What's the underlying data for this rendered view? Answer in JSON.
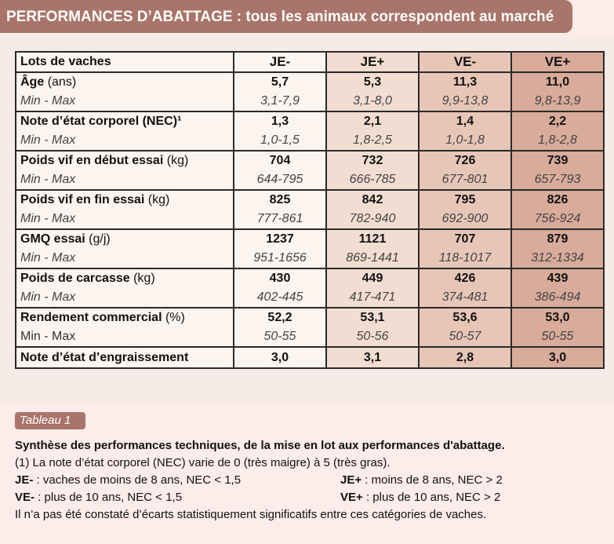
{
  "title": "PERFORMANCES D’ABATTAGE : tous les animaux correspondent au marché",
  "table": {
    "header": [
      "Lots de vaches",
      "JE-",
      "JE+",
      "VE-",
      "VE+"
    ],
    "rows": [
      {
        "label": "Âge",
        "unit": "(ans)",
        "values": [
          "5,7",
          "5,3",
          "11,3",
          "11,0"
        ],
        "mm_label": "Min - Max",
        "mm": [
          "3,1-7,9",
          "3,1-8,0",
          "9,9-13,8",
          "9,8-13,9"
        ]
      },
      {
        "label": "Note d’état corporel (NEC)¹",
        "unit": "",
        "values": [
          "1,3",
          "2,1",
          "1,4",
          "2,2"
        ],
        "mm_label": "Min - Max",
        "mm": [
          "1,0-1,5",
          "1,8-2,5",
          "1,0-1,8",
          "1,8-2,8"
        ]
      },
      {
        "label": "Poids vif en début essai",
        "unit": "(kg)",
        "values": [
          "704",
          "732",
          "726",
          "739"
        ],
        "mm_label": "Min - Max",
        "mm": [
          "644-795",
          "666-785",
          "677-801",
          "657-793"
        ]
      },
      {
        "label": "Poids vif en fin essai",
        "unit": "(kg)",
        "values": [
          "825",
          "842",
          "795",
          "826"
        ],
        "mm_label": "Min - Max",
        "mm": [
          "777-861",
          "782-940",
          "692-900",
          "756-924"
        ]
      },
      {
        "label": "GMQ essai",
        "unit": "(g/j)",
        "values": [
          "1237",
          "1121",
          "707",
          "879"
        ],
        "mm_label": "Min - Max",
        "mm": [
          "951-1656",
          "869-1441",
          "118-1017",
          "312-1334"
        ]
      },
      {
        "label": "Poids de carcasse",
        "unit": "(kg)",
        "values": [
          "430",
          "449",
          "426",
          "439"
        ],
        "mm_label": "Min - Max",
        "mm": [
          "402-445",
          "417-471",
          "374-481",
          "386-494"
        ]
      },
      {
        "label": "Rendement commercial",
        "unit": "(%)",
        "values": [
          "52,2",
          "53,1",
          "53,6",
          "53,0"
        ],
        "mm_label": "Min - Max",
        "mm": [
          "50-55",
          "50-56",
          "50-57",
          "50-55"
        ]
      }
    ],
    "last_row": {
      "label": "Note d’état d’engraissement",
      "values": [
        "3,0",
        "3,1",
        "2,8",
        "3,0"
      ]
    }
  },
  "caption": {
    "tag": "Tableau 1",
    "heading": "Synthèse des performances techniques, de la mise en lot aux performances d'abattage.",
    "note": "(1) La note d’état corporel (NEC) varie de 0 (très maigre) à 5 (très gras).",
    "legend": [
      {
        "code": "JE-",
        "text": " : vaches de moins de 8 ans, NEC < 1,5"
      },
      {
        "code": "JE+",
        "text": " : moins de 8 ans, NEC > 2"
      },
      {
        "code": "VE-",
        "text": " : plus de 10 ans, NEC < 1,5"
      },
      {
        "code": "VE+",
        "text": " : plus de 10 ans, NEC > 2"
      }
    ],
    "footer": "Il n’a pas été constaté d’écarts statistiquement significatifs entre ces catégories de vaches."
  }
}
